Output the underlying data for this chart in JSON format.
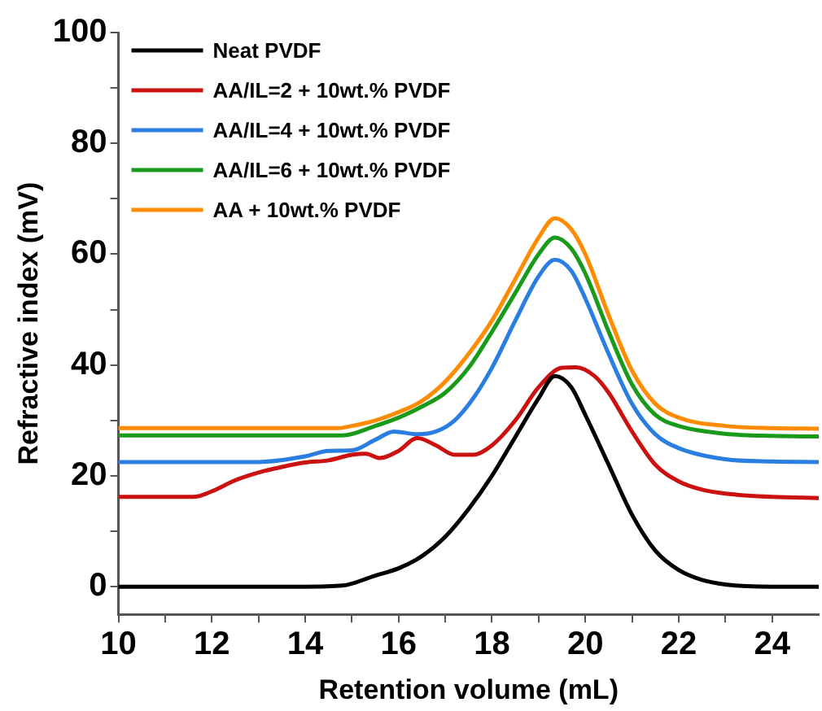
{
  "chart_data": {
    "type": "line",
    "xlabel": "Retention volume (mL)",
    "ylabel": "Refractive index (mV)",
    "xlim": [
      10,
      25
    ],
    "ylim": [
      -5,
      100
    ],
    "xticks": [
      10,
      {
        "value": 11,
        "label": null
      },
      12,
      {
        "value": 13,
        "label": null
      },
      14,
      {
        "value": 15,
        "label": null
      },
      16,
      {
        "value": 17,
        "label": null
      },
      18,
      {
        "value": 19,
        "label": null
      },
      20,
      {
        "value": 21,
        "label": null
      },
      22,
      {
        "value": 23,
        "label": null
      },
      24
    ],
    "yticks": [
      0,
      {
        "value": 10,
        "label": null
      },
      20,
      {
        "value": 30,
        "label": null
      },
      40,
      {
        "value": 50,
        "label": null
      },
      60,
      {
        "value": 70,
        "label": null
      },
      80,
      {
        "value": 90,
        "label": null
      },
      100
    ],
    "grid": false,
    "legend": "top left",
    "marker": "none",
    "line_style": "solid",
    "series": [
      {
        "name": "Neat PVDF",
        "color": "#000000",
        "x": [
          10,
          12,
          14,
          14.8,
          15.5,
          16,
          16.5,
          17,
          17.5,
          18,
          18.5,
          19,
          19.35,
          19.7,
          20,
          20.5,
          21,
          21.5,
          22,
          22.5,
          23,
          24,
          25
        ],
        "values": [
          0,
          0,
          0,
          0.2,
          2,
          3.3,
          5.5,
          9,
          14,
          20,
          27,
          34,
          38,
          36,
          31,
          22,
          13,
          6.5,
          3,
          1.2,
          0.4,
          0,
          0
        ]
      },
      {
        "name": "AA/IL=2 + 10wt.% PVDF",
        "color": "#cc1111",
        "x": [
          10,
          11.6,
          12,
          12.5,
          13,
          13.5,
          14,
          14.5,
          15,
          15.3,
          15.6,
          16,
          16.4,
          16.8,
          17.2,
          17.6,
          18,
          18.5,
          19,
          19.5,
          19.8,
          20.2,
          20.5,
          21,
          21.5,
          22,
          22.5,
          23,
          24,
          25
        ],
        "values": [
          16.2,
          16.2,
          17.2,
          19.2,
          20.6,
          21.6,
          22.4,
          22.8,
          23.8,
          24,
          23.2,
          24.5,
          26.8,
          25.5,
          23.8,
          23.8,
          25.5,
          30,
          36,
          39.5,
          39.6,
          38,
          35,
          28,
          22,
          19,
          17.5,
          16.8,
          16.2,
          16
        ]
      },
      {
        "name": "AA/IL=4 + 10wt.% PVDF",
        "color": "#2a7de1",
        "x": [
          10,
          13,
          14,
          14.5,
          15,
          15.5,
          15.9,
          16.4,
          16.8,
          17.2,
          17.6,
          18,
          18.5,
          19,
          19.35,
          19.7,
          20,
          20.5,
          21,
          21.5,
          22,
          23,
          24,
          25
        ],
        "values": [
          22.5,
          22.5,
          23.5,
          24.5,
          24.6,
          26.5,
          28,
          27.5,
          28,
          30,
          34,
          39.5,
          48,
          56,
          59,
          57,
          52,
          42,
          33,
          27.5,
          25,
          23,
          22.6,
          22.5
        ]
      },
      {
        "name": "AA/IL=6 + 10wt.% PVDF",
        "color": "#1a9a1a",
        "x": [
          10,
          14.8,
          15.5,
          16,
          16.5,
          17,
          17.5,
          18,
          18.5,
          19,
          19.35,
          19.7,
          20,
          20.5,
          21,
          21.5,
          22,
          23,
          24,
          25
        ],
        "values": [
          27.3,
          27.3,
          29,
          30.5,
          32.5,
          35,
          39.5,
          46,
          53,
          60,
          63,
          61,
          56.5,
          46,
          36.5,
          31,
          29,
          27.6,
          27.2,
          27.1
        ]
      },
      {
        "name": "AA + 10wt.% PVDF",
        "color": "#ff8c00",
        "x": [
          10,
          14.7,
          15,
          15.5,
          16,
          16.5,
          17,
          17.5,
          18,
          18.5,
          19,
          19.35,
          19.7,
          20,
          20.5,
          21,
          21.5,
          22,
          23,
          24,
          25
        ],
        "values": [
          28.6,
          28.6,
          29,
          30,
          31.5,
          33.5,
          37,
          42,
          48,
          55.5,
          63,
          66.5,
          64.5,
          60,
          49,
          39,
          33,
          30.5,
          29,
          28.6,
          28.5
        ]
      }
    ]
  }
}
